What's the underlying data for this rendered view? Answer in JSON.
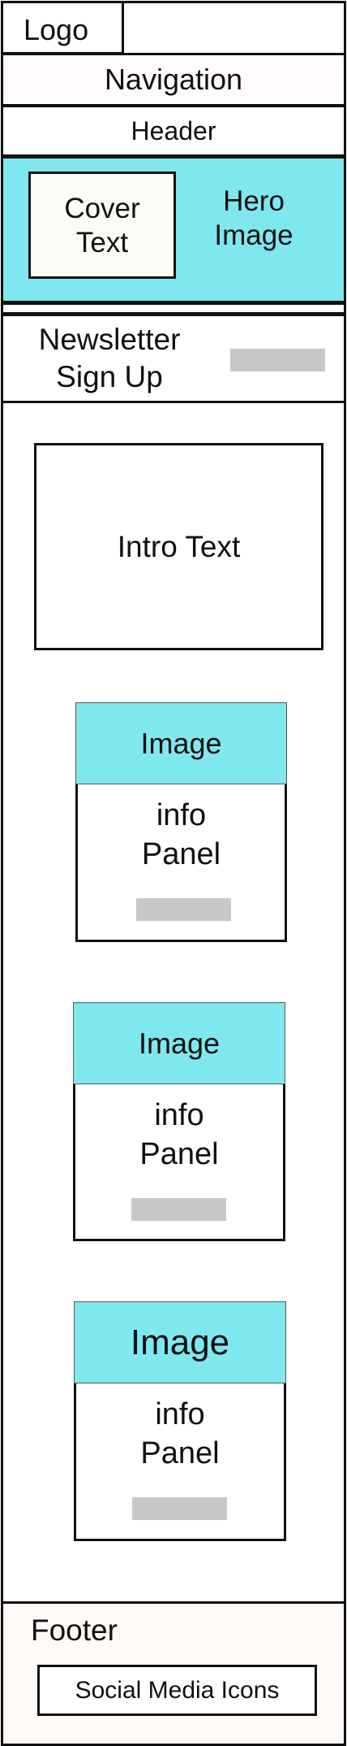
{
  "logo": "Logo",
  "navigation": "Navigation",
  "header": "Header",
  "hero": {
    "cover_text": "Cover\nText",
    "image_label": "Hero\nImage"
  },
  "newsletter": {
    "label": "Newsletter\nSign Up"
  },
  "intro": "Intro Text",
  "cards": [
    {
      "image": "Image",
      "info": "info\nPanel"
    },
    {
      "image": "Image",
      "info": "info\nPanel"
    },
    {
      "image": "Image",
      "info": "info\nPanel"
    }
  ],
  "footer": {
    "label": "Footer",
    "social": "Social Media Icons"
  },
  "colors": {
    "accent": "#7fe8ee",
    "placeholder": "#c8c8c8",
    "border": "#111111"
  }
}
